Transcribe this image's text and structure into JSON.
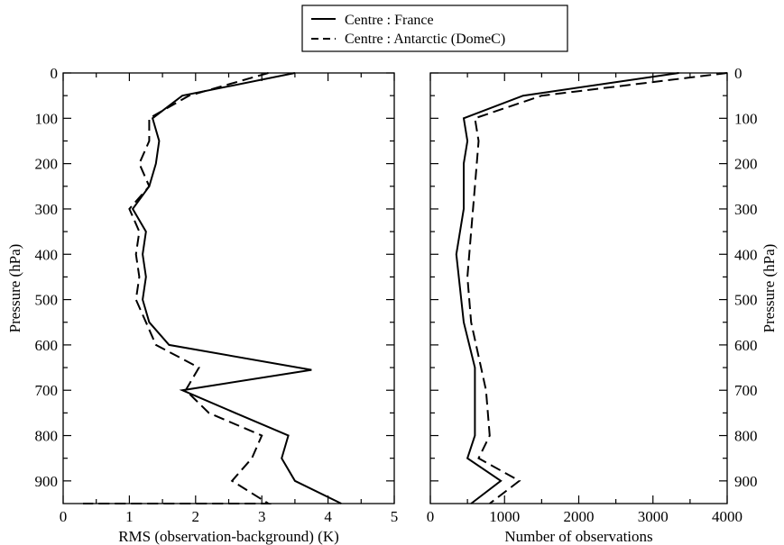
{
  "legend": {
    "entries": [
      {
        "label": "Centre : France",
        "style": "solid"
      },
      {
        "label": "Centre : Antarctic (DomeC)",
        "style": "dashed"
      }
    ]
  },
  "chart_data": [
    {
      "type": "line",
      "xlabel": "RMS (observation-background) (K)",
      "ylabel": "Pressure (hPa)",
      "xlim": [
        0,
        5
      ],
      "ylim": [
        950,
        0
      ],
      "y_inverted": true,
      "x_ticks": [
        "0",
        "1",
        "2",
        "3",
        "4",
        "5"
      ],
      "y_ticks": [
        "0",
        "100",
        "200",
        "300",
        "400",
        "500",
        "600",
        "700",
        "800",
        "900"
      ],
      "ylabel_side": "left",
      "series": [
        {
          "name": "Centre : France",
          "style": "solid",
          "points": [
            [
              3.5,
              0
            ],
            [
              1.8,
              50
            ],
            [
              1.35,
              100
            ],
            [
              1.45,
              150
            ],
            [
              1.4,
              200
            ],
            [
              1.3,
              250
            ],
            [
              1.05,
              300
            ],
            [
              1.25,
              350
            ],
            [
              1.2,
              400
            ],
            [
              1.25,
              450
            ],
            [
              1.2,
              500
            ],
            [
              1.3,
              550
            ],
            [
              1.6,
              600
            ],
            [
              3.75,
              655
            ],
            [
              1.8,
              700
            ],
            [
              2.6,
              750
            ],
            [
              3.4,
              800
            ],
            [
              3.3,
              850
            ],
            [
              3.5,
              900
            ],
            [
              4.2,
              950
            ]
          ]
        },
        {
          "name": "Centre : Antarctic (DomeC)",
          "style": "dashed",
          "points": [
            [
              3.1,
              0
            ],
            [
              1.9,
              50
            ],
            [
              1.3,
              100
            ],
            [
              1.3,
              150
            ],
            [
              1.15,
              200
            ],
            [
              1.3,
              250
            ],
            [
              1.0,
              300
            ],
            [
              1.15,
              350
            ],
            [
              1.1,
              400
            ],
            [
              1.15,
              450
            ],
            [
              1.1,
              500
            ],
            [
              1.25,
              550
            ],
            [
              1.4,
              600
            ],
            [
              2.05,
              650
            ],
            [
              1.85,
              700
            ],
            [
              2.2,
              750
            ],
            [
              3.0,
              800
            ],
            [
              2.85,
              850
            ],
            [
              2.55,
              900
            ],
            [
              3.1,
              950
            ],
            [
              0.3,
              950
            ]
          ]
        }
      ]
    },
    {
      "type": "line",
      "xlabel": "Number of observations",
      "ylabel": "Pressure (hPa)",
      "xlim": [
        0,
        4000
      ],
      "ylim": [
        950,
        0
      ],
      "y_inverted": true,
      "x_ticks": [
        "0",
        "1000",
        "2000",
        "3000",
        "4000"
      ],
      "y_ticks": [
        "0",
        "100",
        "200",
        "300",
        "400",
        "500",
        "600",
        "700",
        "800",
        "900"
      ],
      "ylabel_side": "right",
      "series": [
        {
          "name": "Centre : France",
          "style": "solid",
          "points": [
            [
              3350,
              0
            ],
            [
              1250,
              50
            ],
            [
              450,
              100
            ],
            [
              500,
              150
            ],
            [
              450,
              200
            ],
            [
              450,
              300
            ],
            [
              350,
              400
            ],
            [
              450,
              550
            ],
            [
              600,
              650
            ],
            [
              600,
              800
            ],
            [
              500,
              850
            ],
            [
              950,
              900
            ],
            [
              550,
              950
            ]
          ]
        },
        {
          "name": "Centre : Antarctic (DomeC)",
          "style": "dashed",
          "points": [
            [
              4000,
              0
            ],
            [
              1500,
              50
            ],
            [
              600,
              100
            ],
            [
              650,
              150
            ],
            [
              600,
              250
            ],
            [
              550,
              350
            ],
            [
              500,
              450
            ],
            [
              550,
              550
            ],
            [
              750,
              700
            ],
            [
              800,
              800
            ],
            [
              650,
              850
            ],
            [
              1200,
              900
            ],
            [
              800,
              950
            ]
          ]
        }
      ]
    }
  ]
}
